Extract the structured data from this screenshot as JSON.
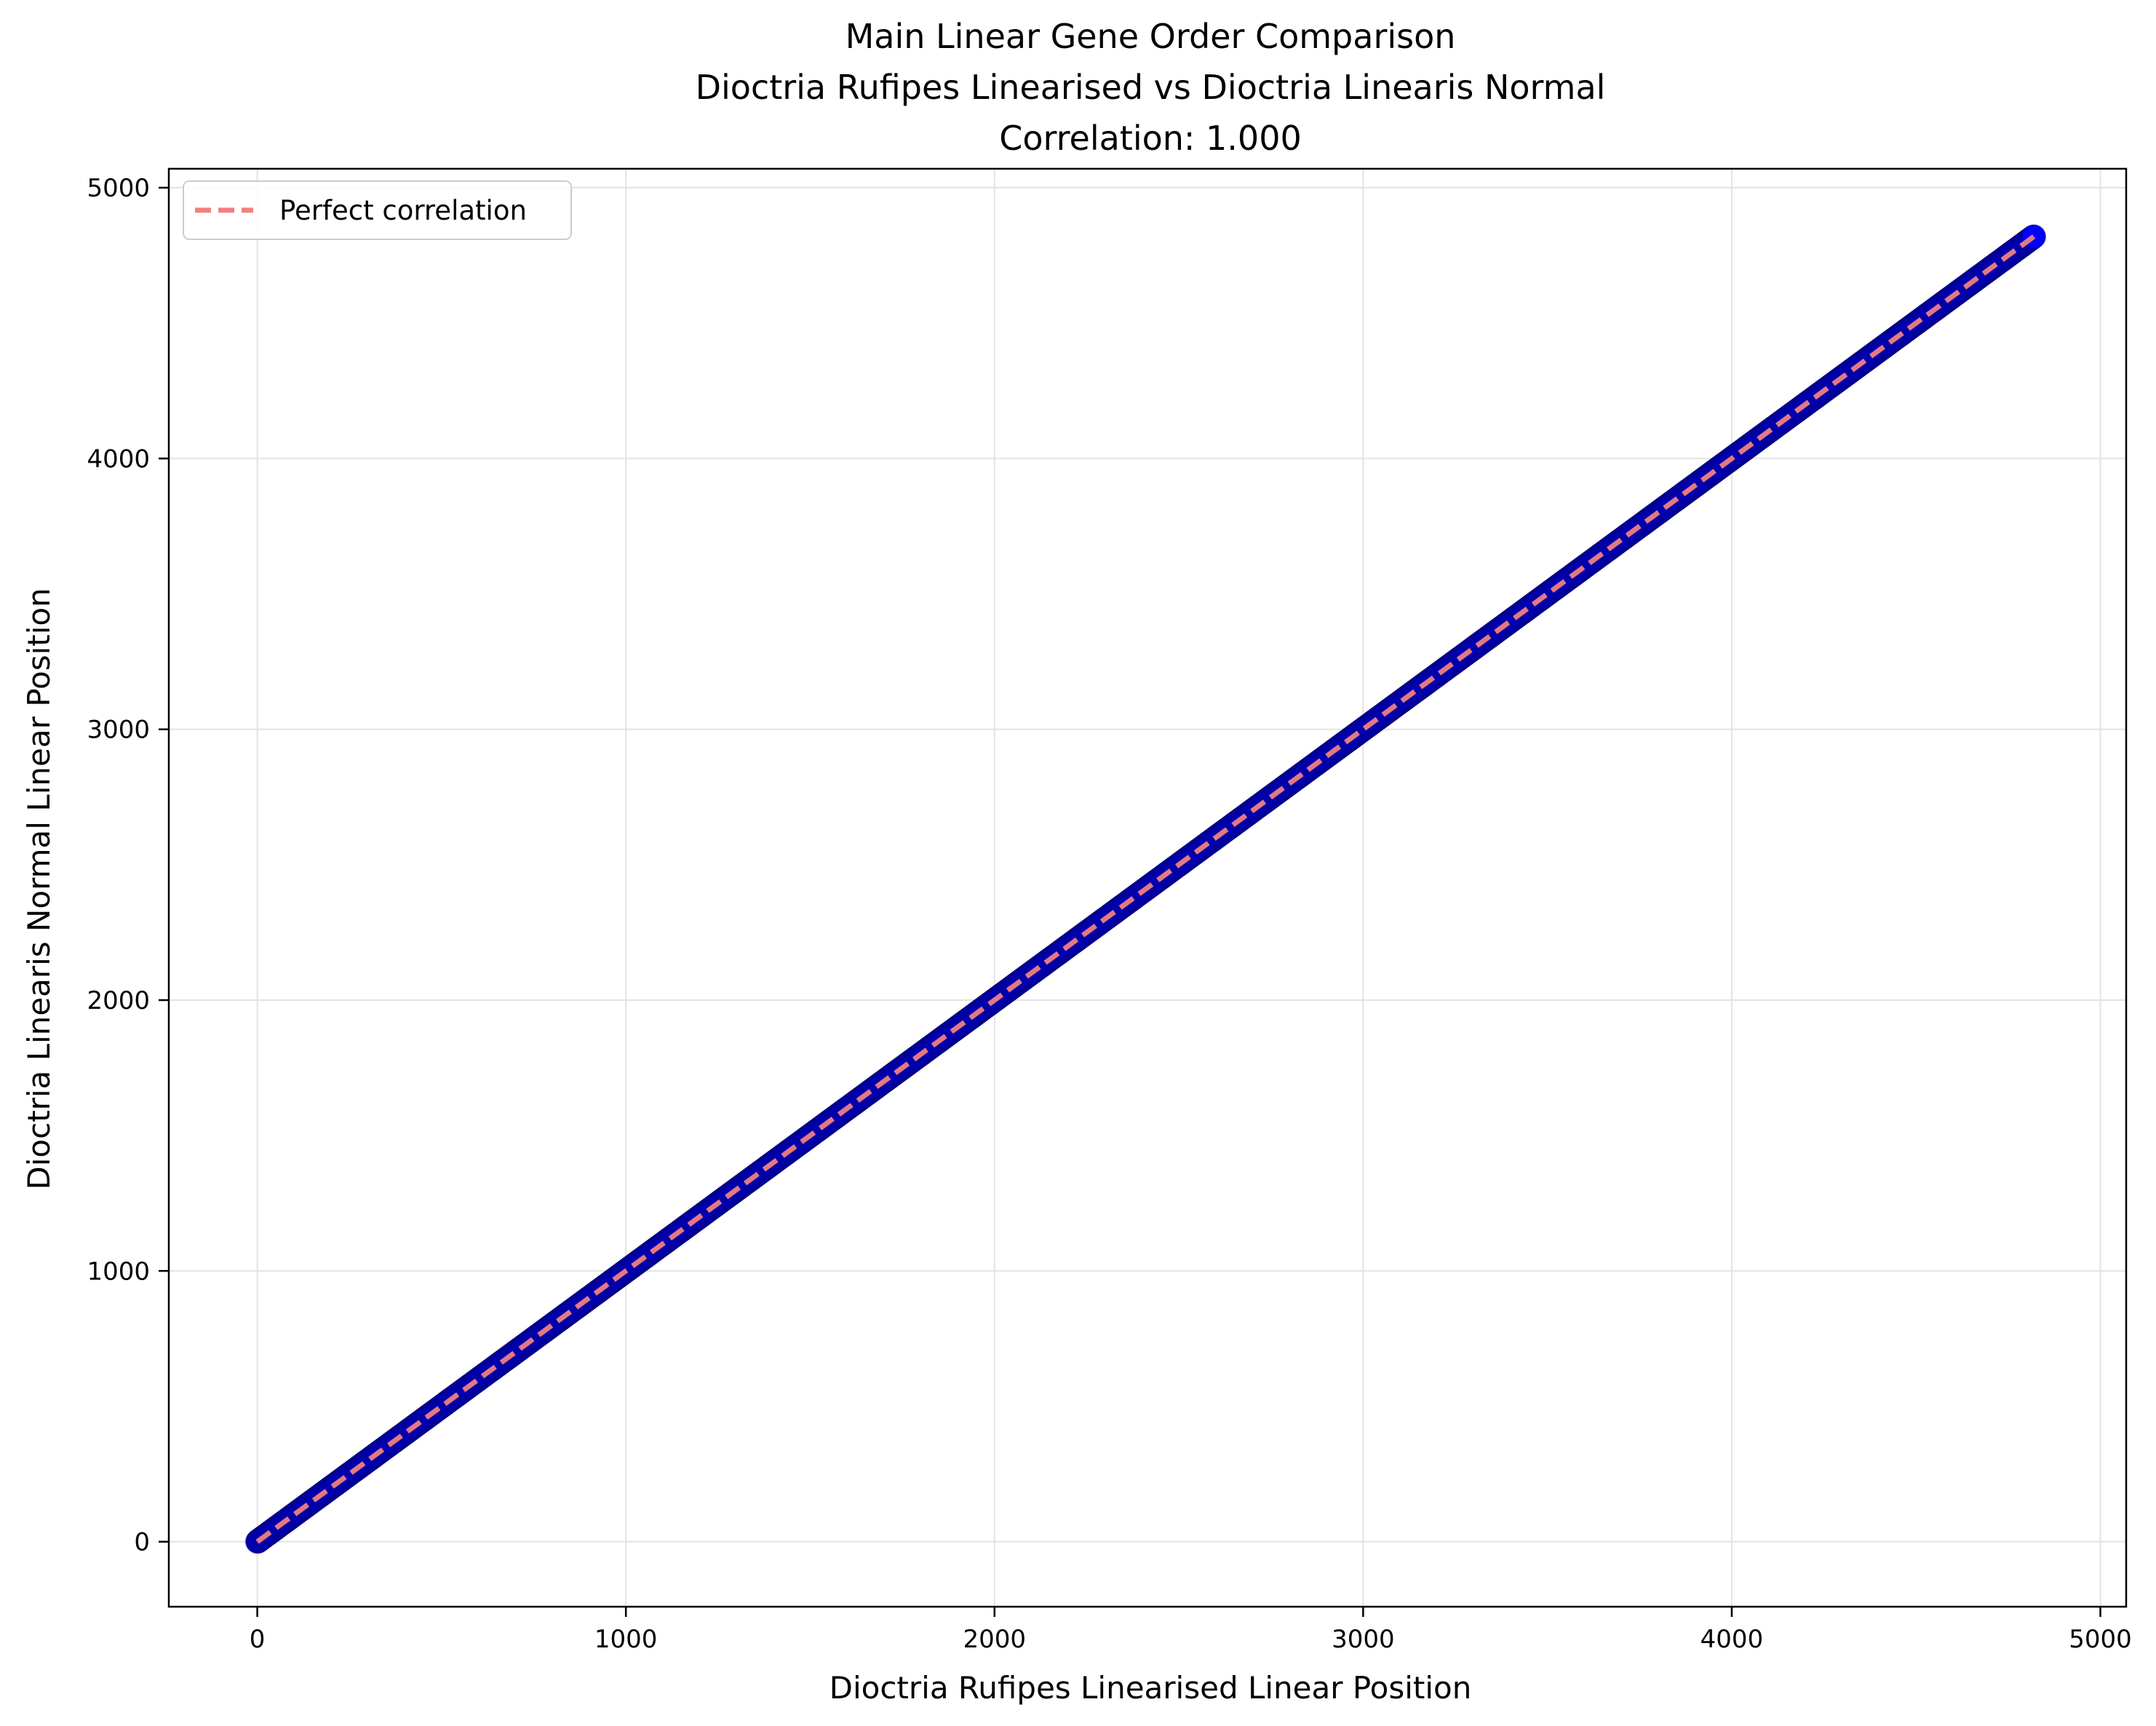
{
  "chart_data": {
    "type": "scatter",
    "title": [
      "Main Linear Gene Order Comparison",
      "Dioctria Rufipes Linearised vs Dioctria Linearis Normal",
      "Correlation: 1.000"
    ],
    "xlabel": "Dioctria Rufipes Linearised Linear Position",
    "ylabel": "Dioctria Linearis Normal Linear Position",
    "xlim": [
      -240,
      5070
    ],
    "ylim": [
      -240,
      5070
    ],
    "xticks": [
      0,
      1000,
      2000,
      3000,
      4000,
      5000
    ],
    "yticks": [
      0,
      1000,
      2000,
      3000,
      4000,
      5000
    ],
    "xtick_labels": [
      "0",
      "1000",
      "2000",
      "3000",
      "4000",
      "5000"
    ],
    "ytick_labels": [
      "0",
      "1000",
      "2000",
      "3000",
      "4000",
      "5000"
    ],
    "grid": true,
    "legend_position": "top-left",
    "series": [
      {
        "kind": "points",
        "color": "#0000ff",
        "edge_color": "#00007a",
        "x_range": [
          0,
          4820
        ],
        "relation": "y = x",
        "point_step": 1
      },
      {
        "name": "Perfect correlation",
        "kind": "line",
        "style": "dashed",
        "color": "#f08080",
        "x": [
          0,
          4820
        ],
        "y": [
          0,
          4820
        ]
      }
    ]
  }
}
